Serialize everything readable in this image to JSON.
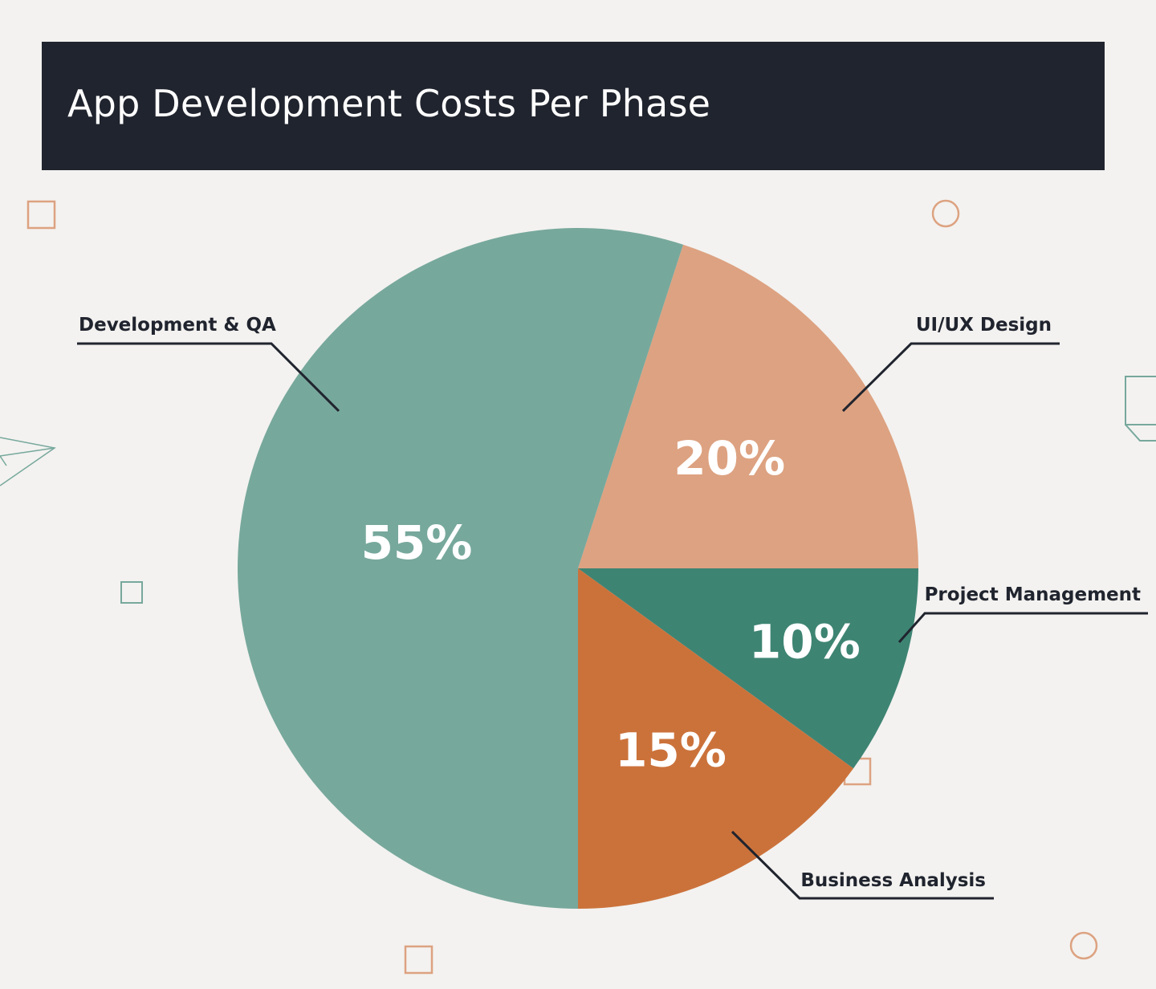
{
  "chart_data": {
    "type": "pie",
    "title": "App Development Costs Per Phase",
    "unit": "%",
    "slices": [
      {
        "label": "UI/UX Design",
        "value": 20,
        "color": "#dda281"
      },
      {
        "label": "Project Management",
        "value": 10,
        "color": "#3e8473"
      },
      {
        "label": "Business Analysis",
        "value": 15,
        "color": "#cb723b"
      },
      {
        "label": "Development & QA",
        "value": 55,
        "color": "#77a89c"
      }
    ]
  },
  "colors": {
    "header_background": "#20242e",
    "page_background": "#f3f2f0",
    "callout_line": "#20242e",
    "decor_orange": "#dda281",
    "decor_green": "#77a89c"
  },
  "decorations": {
    "shapes": [
      "square-outline-icon",
      "circle-outline-icon",
      "paper-plane-icon",
      "cube-outline-icon"
    ]
  }
}
